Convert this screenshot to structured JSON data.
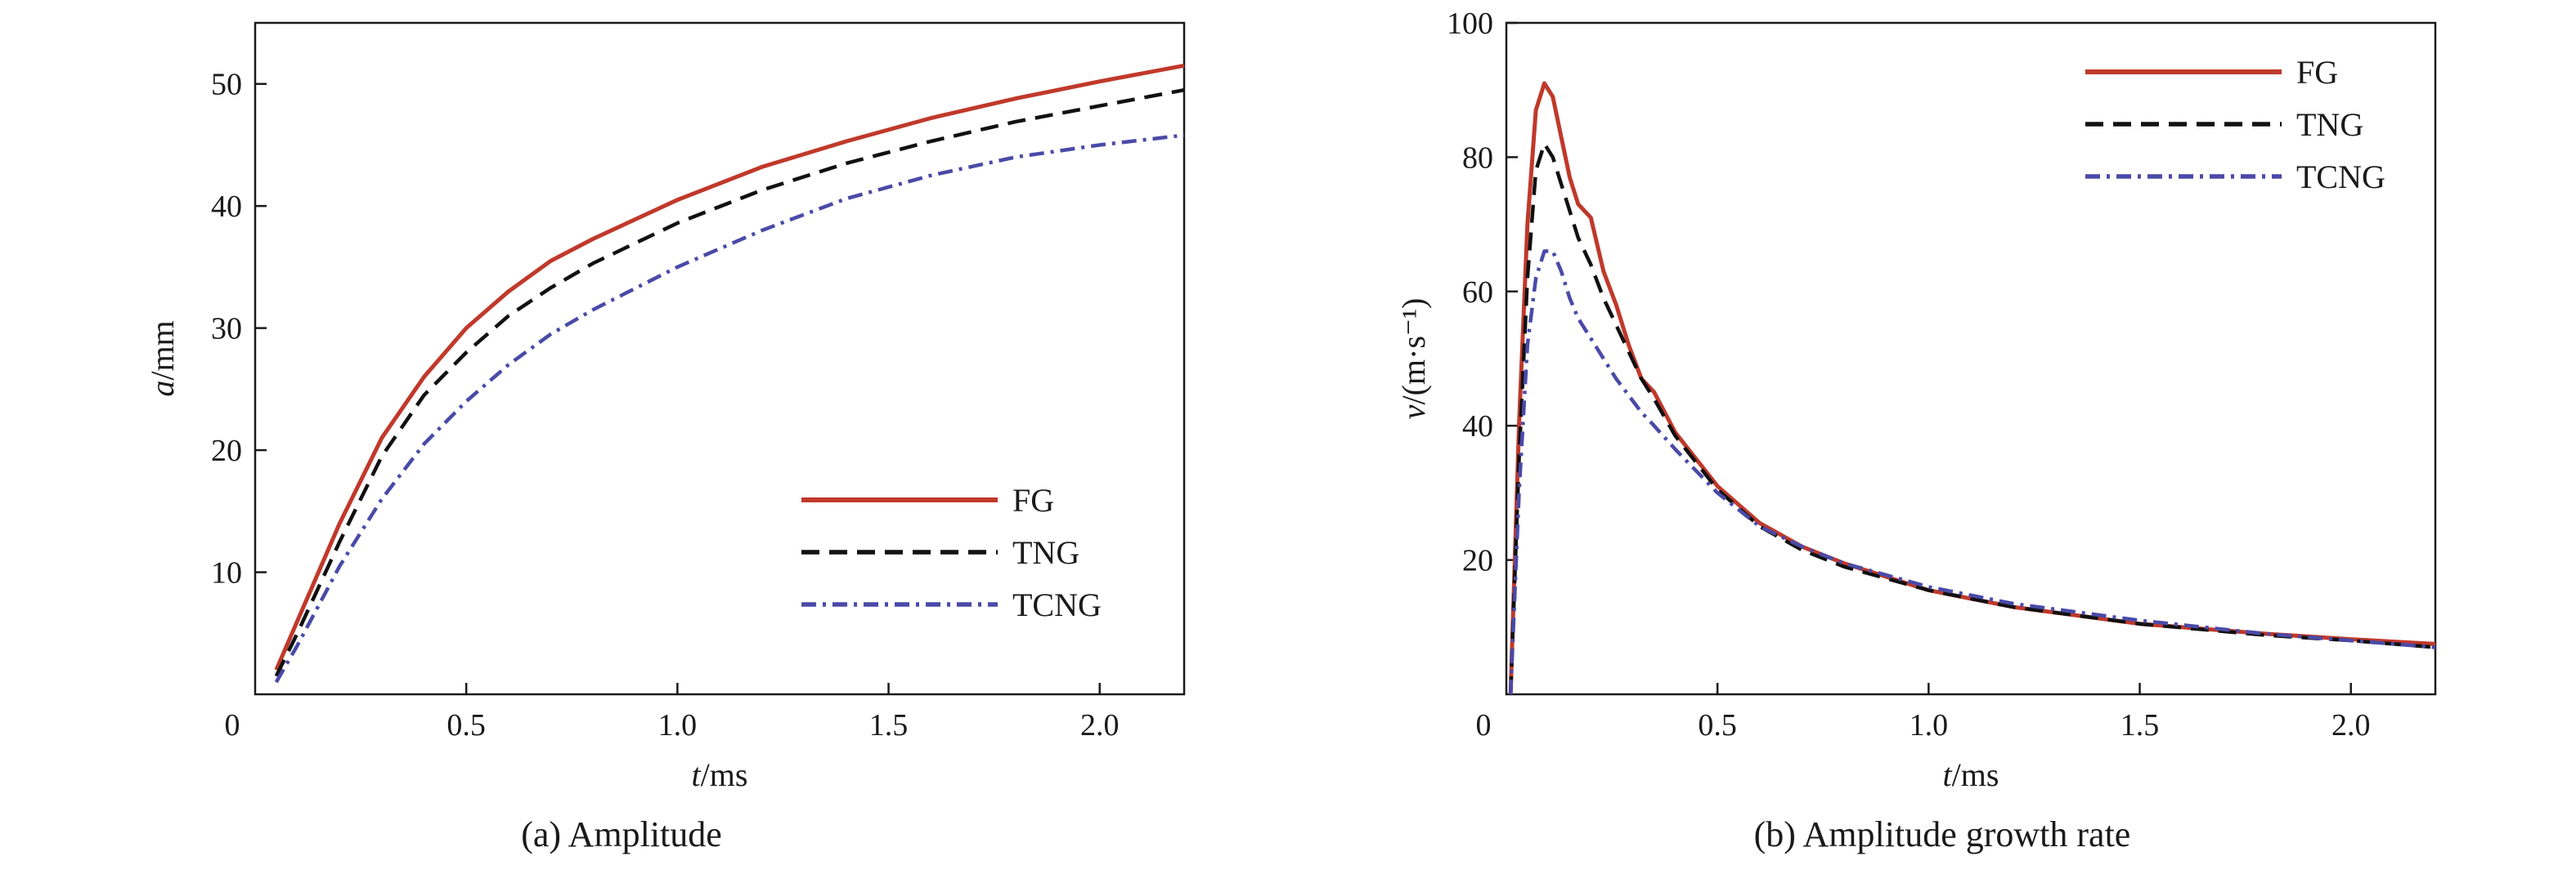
{
  "chart_data": [
    {
      "type": "line",
      "caption": "(a) Amplitude",
      "xlabel_italic": "t",
      "xlabel_unit": "/ms",
      "ylabel_italic": "a",
      "ylabel_unit": "/mm",
      "xlim": [
        0,
        2.2
      ],
      "ylim": [
        0,
        55
      ],
      "xticks": [
        0.5,
        1.0,
        1.5,
        2.0
      ],
      "xtick_labels": [
        "0.5",
        "1.0",
        "1.5",
        "2.0"
      ],
      "yticks": [
        10,
        20,
        30,
        40,
        50
      ],
      "ytick_labels": [
        "10",
        "20",
        "30",
        "40",
        "50"
      ],
      "origin_label": "0",
      "legend_position": "center-right",
      "series": [
        {
          "name": "FG",
          "style": "solid",
          "color": "#c0392b",
          "x": [
            0.05,
            0.1,
            0.2,
            0.3,
            0.4,
            0.5,
            0.6,
            0.7,
            0.8,
            1.0,
            1.2,
            1.4,
            1.6,
            1.8,
            2.0,
            2.2
          ],
          "y": [
            2,
            6,
            14,
            21,
            26,
            30,
            33,
            35.5,
            37.3,
            40.5,
            43.2,
            45.3,
            47.2,
            48.8,
            50.2,
            51.5
          ]
        },
        {
          "name": "TNG",
          "style": "dashed",
          "color": "#111111",
          "x": [
            0.05,
            0.1,
            0.2,
            0.3,
            0.4,
            0.5,
            0.6,
            0.7,
            0.8,
            1.0,
            1.2,
            1.4,
            1.6,
            1.8,
            2.0,
            2.2
          ],
          "y": [
            1.5,
            5,
            12.5,
            19.5,
            24.5,
            28,
            31,
            33.3,
            35.3,
            38.6,
            41.3,
            43.5,
            45.3,
            46.9,
            48.2,
            49.5
          ]
        },
        {
          "name": "TCNG",
          "style": "dashdot",
          "color": "#4a4aa8",
          "x": [
            0.05,
            0.1,
            0.2,
            0.3,
            0.4,
            0.5,
            0.6,
            0.7,
            0.8,
            1.0,
            1.2,
            1.4,
            1.6,
            1.8,
            2.0,
            2.2
          ],
          "y": [
            1,
            4,
            10.5,
            16,
            20.5,
            24,
            27,
            29.5,
            31.5,
            35,
            38,
            40.6,
            42.5,
            44,
            45,
            45.8
          ]
        }
      ]
    },
    {
      "type": "line",
      "caption": "(b) Amplitude growth rate",
      "xlabel_italic": "t",
      "xlabel_unit": "/ms",
      "ylabel_italic": "v",
      "ylabel_unit": "/(m·s⁻¹)",
      "xlim": [
        0,
        2.2
      ],
      "ylim": [
        0,
        100
      ],
      "xticks": [
        0.5,
        1.0,
        1.5,
        2.0
      ],
      "xtick_labels": [
        "0.5",
        "1.0",
        "1.5",
        "2.0"
      ],
      "yticks": [
        20,
        40,
        60,
        80,
        100
      ],
      "ytick_labels": [
        "20",
        "40",
        "60",
        "80",
        "100"
      ],
      "origin_label": "0",
      "legend_position": "top-right",
      "series": [
        {
          "name": "FG",
          "style": "solid",
          "color": "#c0392b",
          "x": [
            0.01,
            0.03,
            0.05,
            0.07,
            0.09,
            0.11,
            0.13,
            0.15,
            0.17,
            0.2,
            0.23,
            0.26,
            0.29,
            0.32,
            0.35,
            0.4,
            0.5,
            0.6,
            0.7,
            0.8,
            1.0,
            1.2,
            1.5,
            1.8,
            2.0,
            2.2
          ],
          "y": [
            0,
            40,
            70,
            87,
            91,
            89,
            83,
            77,
            73,
            71,
            63,
            58,
            52,
            47,
            45,
            39,
            31,
            25.5,
            22,
            19.5,
            15.5,
            13,
            10.5,
            9,
            8.2,
            7.5
          ]
        },
        {
          "name": "TNG",
          "style": "dashed",
          "color": "#111111",
          "x": [
            0.01,
            0.03,
            0.05,
            0.07,
            0.09,
            0.11,
            0.13,
            0.15,
            0.17,
            0.2,
            0.23,
            0.26,
            0.29,
            0.32,
            0.35,
            0.4,
            0.5,
            0.6,
            0.7,
            0.8,
            1.0,
            1.2,
            1.5,
            1.8,
            2.0,
            2.2
          ],
          "y": [
            0,
            35,
            62,
            78,
            82,
            80,
            76,
            72,
            68,
            64,
            59,
            55,
            51,
            47,
            44,
            38.5,
            30.5,
            25,
            21.5,
            19,
            15.5,
            13,
            10.5,
            8.8,
            8,
            7
          ]
        },
        {
          "name": "TCNG",
          "style": "dashdot",
          "color": "#4a4aa8",
          "x": [
            0.01,
            0.03,
            0.05,
            0.07,
            0.09,
            0.11,
            0.13,
            0.15,
            0.17,
            0.2,
            0.23,
            0.26,
            0.29,
            0.32,
            0.35,
            0.4,
            0.5,
            0.6,
            0.7,
            0.8,
            1.0,
            1.2,
            1.5,
            1.8,
            2.0,
            2.2
          ],
          "y": [
            0,
            30,
            52,
            62,
            66,
            66,
            63,
            59,
            56,
            53,
            50,
            47,
            44.5,
            42,
            40,
            36.5,
            30,
            25,
            22,
            19.5,
            16,
            13.5,
            11,
            9,
            8,
            7
          ]
        }
      ]
    }
  ]
}
